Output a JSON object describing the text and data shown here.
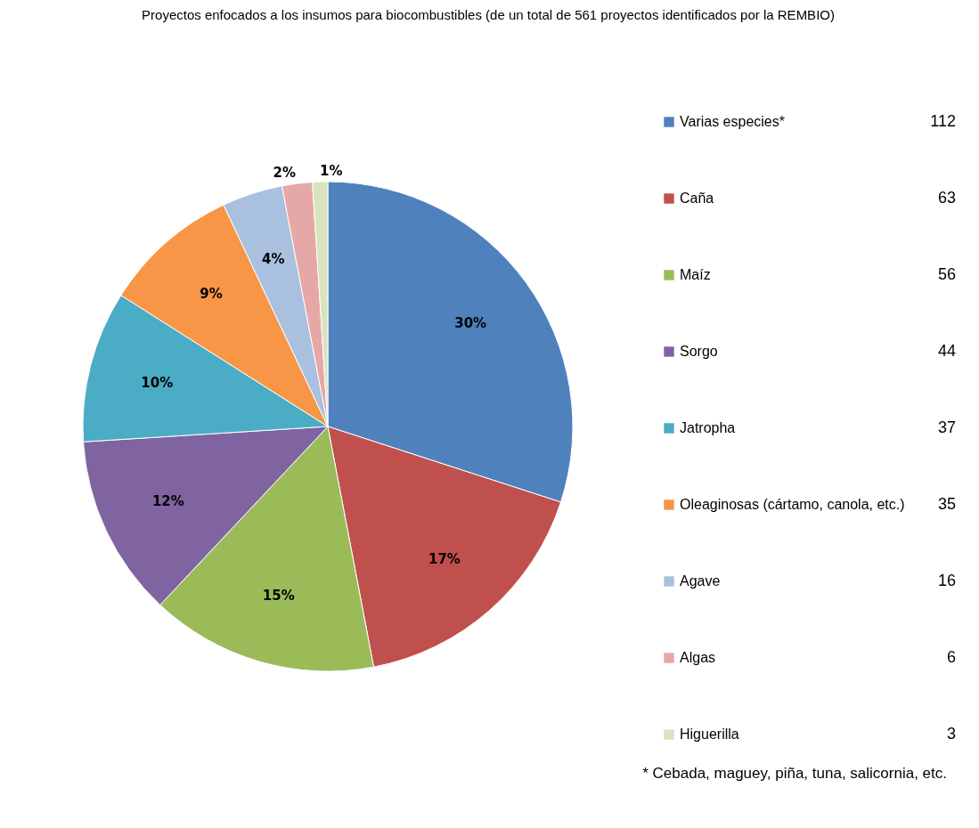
{
  "chart_data": {
    "type": "pie",
    "title": "Proyectos enfocados a los insumos para biocombustibles (de un total de 561 proyectos identificados por la REMBIO)",
    "categories": [
      "Varias especies*",
      "Caña",
      "Maíz",
      "Sorgo",
      "Jatropha",
      "Oleaginosas (cártamo, canola, etc.)",
      "Agave",
      "Algas",
      "Higuerilla"
    ],
    "values": [
      30,
      17,
      15,
      12,
      10,
      9,
      4,
      2,
      1
    ],
    "colors": [
      "#4f81bd",
      "#c0504d",
      "#9bbb59",
      "#8064a2",
      "#4bacc6",
      "#f79646",
      "#a9c0de",
      "#e6a8a6",
      "#d7e4bd"
    ],
    "value_labels": [
      "30%",
      "17%",
      "15%",
      "12%",
      "10%",
      "9%",
      "4%",
      "2%",
      "1%"
    ],
    "legend": "right",
    "annotations": [
      {
        "text": "112",
        "x": "Varias especies*"
      },
      {
        "text": "63",
        "x": "Caña"
      },
      {
        "text": "56",
        "x": "Maíz"
      },
      {
        "text": "44",
        "x": "Sorgo"
      },
      {
        "text": "37",
        "x": "Jatropha"
      },
      {
        "text": "35",
        "x": "Oleaginosas (cártamo, canola, etc.)"
      },
      {
        "text": "16",
        "x": "Agave"
      },
      {
        "text": "6",
        "x": "Algas"
      },
      {
        "text": "3",
        "x": "Higuerilla"
      },
      "* Cebada, maguey, piña, tuna, salicornia, etc."
    ]
  }
}
